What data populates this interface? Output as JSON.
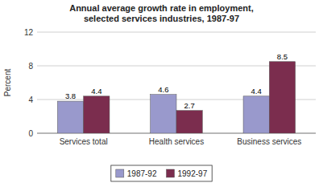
{
  "chart_data": {
    "type": "bar",
    "title": "Annual average growth rate in employment,\nselected services industries, 1987-97",
    "categories": [
      "Services total",
      "Health services",
      "Business services"
    ],
    "series": [
      {
        "name": "1987-92",
        "color": "#9999CC",
        "values": [
          3.8,
          4.6,
          4.4
        ]
      },
      {
        "name": "1992-97",
        "color": "#7B2D4E",
        "values": [
          4.4,
          2.7,
          8.5
        ]
      }
    ],
    "ylabel": "Percent",
    "ylim": [
      0,
      12
    ],
    "yticks": [
      0,
      4,
      8,
      12
    ],
    "grid": true,
    "legend": "bottom",
    "data_labels": true
  }
}
